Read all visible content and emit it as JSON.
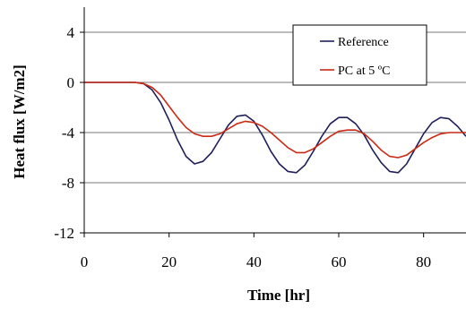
{
  "chart_data": {
    "type": "line",
    "title": "",
    "xlabel": "Time [hr]",
    "ylabel": "Heat flux [W/m2]",
    "xlim": [
      0,
      90
    ],
    "ylim": [
      -12,
      6
    ],
    "xticks": [
      0,
      20,
      40,
      60,
      80
    ],
    "yticks": [
      4,
      0,
      -4,
      -8,
      -12
    ],
    "grid": "horizontal",
    "legend_position": "top-right",
    "series": [
      {
        "name": "Reference",
        "color": "#1f1f5c",
        "points": [
          [
            0,
            0
          ],
          [
            12,
            0
          ],
          [
            14,
            -0.1
          ],
          [
            16,
            -0.6
          ],
          [
            18,
            -1.6
          ],
          [
            20,
            -3.0
          ],
          [
            22,
            -4.6
          ],
          [
            24,
            -5.9
          ],
          [
            26,
            -6.5
          ],
          [
            28,
            -6.3
          ],
          [
            30,
            -5.6
          ],
          [
            32,
            -4.5
          ],
          [
            34,
            -3.4
          ],
          [
            36,
            -2.7
          ],
          [
            38,
            -2.6
          ],
          [
            40,
            -3.1
          ],
          [
            42,
            -4.2
          ],
          [
            44,
            -5.5
          ],
          [
            46,
            -6.5
          ],
          [
            48,
            -7.1
          ],
          [
            50,
            -7.2
          ],
          [
            52,
            -6.6
          ],
          [
            54,
            -5.5
          ],
          [
            56,
            -4.3
          ],
          [
            58,
            -3.3
          ],
          [
            60,
            -2.8
          ],
          [
            62,
            -2.8
          ],
          [
            64,
            -3.3
          ],
          [
            66,
            -4.2
          ],
          [
            68,
            -5.4
          ],
          [
            70,
            -6.4
          ],
          [
            72,
            -7.1
          ],
          [
            74,
            -7.2
          ],
          [
            76,
            -6.5
          ],
          [
            78,
            -5.3
          ],
          [
            80,
            -4.1
          ],
          [
            82,
            -3.2
          ],
          [
            84,
            -2.8
          ],
          [
            86,
            -2.9
          ],
          [
            88,
            -3.5
          ],
          [
            90,
            -4.3
          ]
        ]
      },
      {
        "name": "PC at 5 ºC",
        "color": "#cc2a14",
        "points": [
          [
            0,
            0
          ],
          [
            12,
            0
          ],
          [
            14,
            -0.1
          ],
          [
            16,
            -0.4
          ],
          [
            18,
            -1.0
          ],
          [
            20,
            -1.9
          ],
          [
            22,
            -2.8
          ],
          [
            24,
            -3.6
          ],
          [
            26,
            -4.1
          ],
          [
            28,
            -4.3
          ],
          [
            30,
            -4.3
          ],
          [
            32,
            -4.1
          ],
          [
            34,
            -3.7
          ],
          [
            36,
            -3.3
          ],
          [
            38,
            -3.1
          ],
          [
            40,
            -3.2
          ],
          [
            42,
            -3.5
          ],
          [
            44,
            -4.0
          ],
          [
            46,
            -4.6
          ],
          [
            48,
            -5.2
          ],
          [
            50,
            -5.6
          ],
          [
            52,
            -5.6
          ],
          [
            54,
            -5.3
          ],
          [
            56,
            -4.8
          ],
          [
            58,
            -4.3
          ],
          [
            60,
            -3.9
          ],
          [
            62,
            -3.8
          ],
          [
            64,
            -3.8
          ],
          [
            66,
            -4.1
          ],
          [
            68,
            -4.7
          ],
          [
            70,
            -5.4
          ],
          [
            72,
            -5.9
          ],
          [
            74,
            -6.0
          ],
          [
            76,
            -5.8
          ],
          [
            78,
            -5.3
          ],
          [
            80,
            -4.8
          ],
          [
            82,
            -4.4
          ],
          [
            84,
            -4.1
          ],
          [
            86,
            -4.0
          ],
          [
            88,
            -4.0
          ],
          [
            90,
            -4.0
          ]
        ]
      }
    ]
  }
}
